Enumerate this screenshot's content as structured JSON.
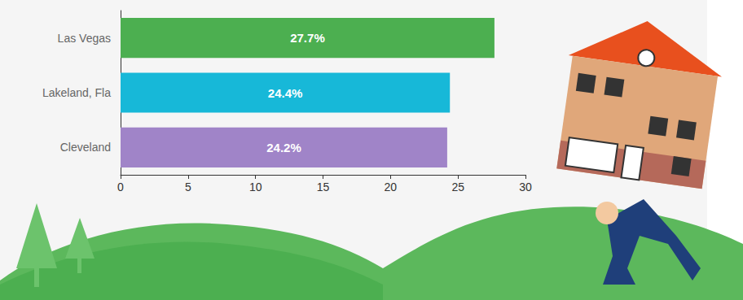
{
  "chart_data": {
    "type": "bar",
    "orientation": "horizontal",
    "categories": [
      "Las Vegas",
      "Lakeland, Fla",
      "Cleveland"
    ],
    "values": [
      27.7,
      24.4,
      24.2
    ],
    "value_labels": [
      "27.7%",
      "24.4%",
      "24.2%"
    ],
    "colors": [
      "#4caf50",
      "#17b8d8",
      "#a084c8"
    ],
    "xlim": [
      0,
      30
    ],
    "xticks": [
      0,
      5,
      10,
      15,
      20,
      25,
      30
    ],
    "grid": false,
    "data_labels": true
  }
}
